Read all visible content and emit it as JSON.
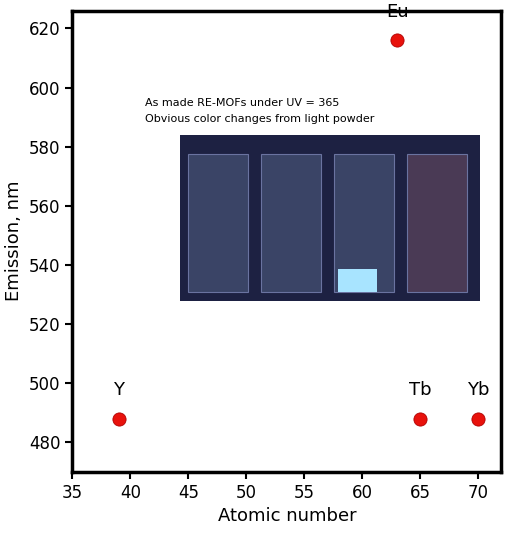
{
  "chart_data": {
    "type": "scatter",
    "xlabel": "Atomic number",
    "ylabel": "Emission, nm",
    "x": [
      39,
      63,
      65,
      70
    ],
    "values": [
      488,
      616,
      488,
      488
    ],
    "point_labels": [
      "Y",
      "Eu",
      "Tb",
      "Yb"
    ],
    "annotations": [
      "As made RE-MOFs under UV = 365",
      "Obvious color changes from light powder"
    ],
    "color": "#e8120c",
    "marker": "o",
    "xlim": [
      35,
      72
    ],
    "xticks": [
      35,
      40,
      45,
      50,
      55,
      60,
      65,
      70
    ],
    "ylim": [
      470,
      626
    ],
    "yticks": [
      480,
      500,
      520,
      540,
      560,
      580,
      600,
      620
    ],
    "grid": false
  }
}
